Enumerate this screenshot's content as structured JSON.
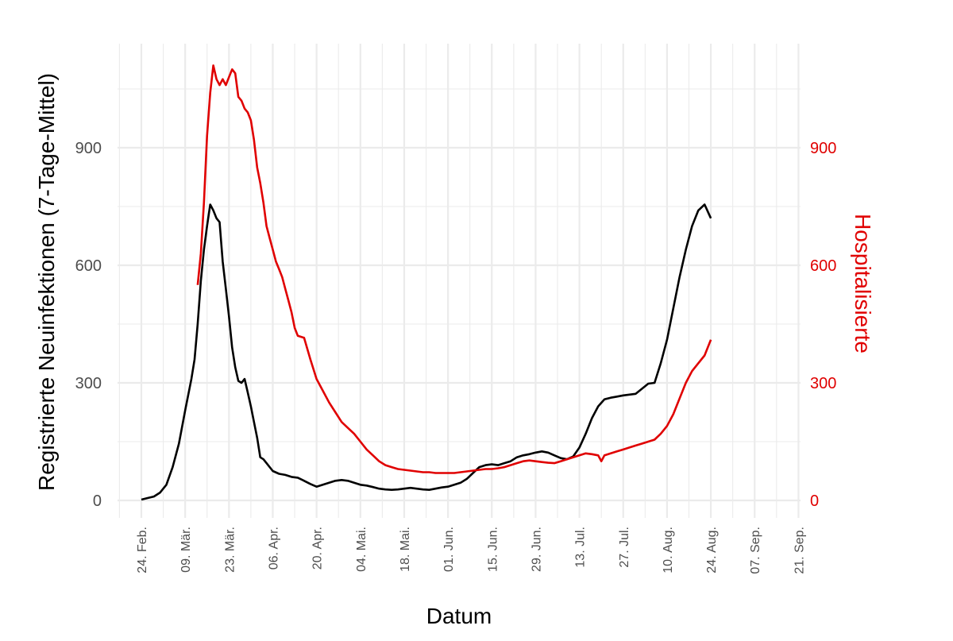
{
  "chart_data": {
    "type": "line",
    "xlabel": "Datum",
    "ylabel_left": "Registrierte Neuinfektionen (7-Tage-Mittel)",
    "ylabel_right": "Hospitalisierte",
    "x_tick_labels": [
      "24. Feb.",
      "09. Mär.",
      "23. Mär.",
      "06. Apr.",
      "20. Apr.",
      "04. Mai.",
      "18. Mai.",
      "01. Jun.",
      "15. Jun.",
      "29. Jun.",
      "13. Jul.",
      "27. Jul.",
      "10. Aug.",
      "24. Aug.",
      "07. Sep.",
      "21. Sep."
    ],
    "y_ticks_left": [
      "0",
      "300",
      "600",
      "900"
    ],
    "y_ticks_right": [
      "0",
      "300",
      "600",
      "900"
    ],
    "ylim": [
      -45,
      1160
    ],
    "grid": true,
    "colors": {
      "infections": "#000000",
      "hospitalized": "#e00000",
      "grid": "#ebebeb",
      "tick_text": "#4d4d4d"
    },
    "series": [
      {
        "key": "infections",
        "axis": "left",
        "points": [
          [
            0,
            2
          ],
          [
            2,
            6
          ],
          [
            4,
            10
          ],
          [
            6,
            20
          ],
          [
            8,
            40
          ],
          [
            10,
            85
          ],
          [
            12,
            145
          ],
          [
            14,
            230
          ],
          [
            16,
            310
          ],
          [
            17,
            360
          ],
          [
            18,
            450
          ],
          [
            19,
            560
          ],
          [
            20,
            640
          ],
          [
            21,
            700
          ],
          [
            22,
            755
          ],
          [
            23,
            740
          ],
          [
            24,
            720
          ],
          [
            25,
            710
          ],
          [
            26,
            610
          ],
          [
            27,
            540
          ],
          [
            28,
            470
          ],
          [
            29,
            390
          ],
          [
            30,
            340
          ],
          [
            31,
            305
          ],
          [
            32,
            300
          ],
          [
            33,
            310
          ],
          [
            34,
            275
          ],
          [
            35,
            240
          ],
          [
            36,
            200
          ],
          [
            37,
            160
          ],
          [
            38,
            110
          ],
          [
            39,
            105
          ],
          [
            40,
            95
          ],
          [
            42,
            75
          ],
          [
            44,
            68
          ],
          [
            46,
            65
          ],
          [
            48,
            60
          ],
          [
            50,
            58
          ],
          [
            52,
            50
          ],
          [
            54,
            42
          ],
          [
            56,
            35
          ],
          [
            58,
            40
          ],
          [
            60,
            45
          ],
          [
            62,
            50
          ],
          [
            64,
            52
          ],
          [
            66,
            50
          ],
          [
            68,
            45
          ],
          [
            70,
            40
          ],
          [
            72,
            38
          ],
          [
            74,
            34
          ],
          [
            76,
            30
          ],
          [
            78,
            28
          ],
          [
            80,
            27
          ],
          [
            82,
            28
          ],
          [
            84,
            30
          ],
          [
            86,
            32
          ],
          [
            88,
            30
          ],
          [
            90,
            28
          ],
          [
            92,
            27
          ],
          [
            94,
            30
          ],
          [
            96,
            33
          ],
          [
            98,
            35
          ],
          [
            100,
            40
          ],
          [
            102,
            45
          ],
          [
            104,
            55
          ],
          [
            106,
            70
          ],
          [
            108,
            85
          ],
          [
            110,
            90
          ],
          [
            112,
            92
          ],
          [
            114,
            90
          ],
          [
            116,
            95
          ],
          [
            118,
            100
          ],
          [
            120,
            110
          ],
          [
            122,
            115
          ],
          [
            124,
            118
          ],
          [
            126,
            122
          ],
          [
            128,
            125
          ],
          [
            130,
            122
          ],
          [
            132,
            115
          ],
          [
            134,
            108
          ],
          [
            136,
            105
          ],
          [
            138,
            112
          ],
          [
            140,
            135
          ],
          [
            142,
            170
          ],
          [
            144,
            210
          ],
          [
            146,
            240
          ],
          [
            148,
            258
          ],
          [
            150,
            262
          ],
          [
            152,
            265
          ],
          [
            154,
            268
          ],
          [
            156,
            270
          ],
          [
            158,
            272
          ],
          [
            160,
            285
          ],
          [
            162,
            298
          ],
          [
            164,
            300
          ],
          [
            166,
            350
          ],
          [
            168,
            410
          ],
          [
            170,
            490
          ],
          [
            172,
            570
          ],
          [
            174,
            640
          ],
          [
            176,
            700
          ],
          [
            178,
            740
          ],
          [
            180,
            755
          ],
          [
            182,
            720
          ]
        ]
      },
      {
        "key": "hospitalized",
        "axis": "right",
        "points": [
          [
            18,
            550
          ],
          [
            19,
            630
          ],
          [
            20,
            760
          ],
          [
            21,
            930
          ],
          [
            22,
            1040
          ],
          [
            23,
            1110
          ],
          [
            24,
            1075
          ],
          [
            25,
            1060
          ],
          [
            26,
            1075
          ],
          [
            27,
            1060
          ],
          [
            28,
            1080
          ],
          [
            29,
            1100
          ],
          [
            30,
            1090
          ],
          [
            31,
            1030
          ],
          [
            32,
            1020
          ],
          [
            33,
            1000
          ],
          [
            34,
            990
          ],
          [
            35,
            970
          ],
          [
            36,
            920
          ],
          [
            37,
            850
          ],
          [
            38,
            810
          ],
          [
            39,
            760
          ],
          [
            40,
            700
          ],
          [
            41,
            670
          ],
          [
            42,
            640
          ],
          [
            43,
            610
          ],
          [
            44,
            590
          ],
          [
            45,
            570
          ],
          [
            46,
            540
          ],
          [
            47,
            510
          ],
          [
            48,
            480
          ],
          [
            49,
            440
          ],
          [
            50,
            420
          ],
          [
            52,
            415
          ],
          [
            54,
            360
          ],
          [
            56,
            310
          ],
          [
            58,
            280
          ],
          [
            60,
            250
          ],
          [
            62,
            225
          ],
          [
            64,
            200
          ],
          [
            66,
            185
          ],
          [
            68,
            170
          ],
          [
            70,
            150
          ],
          [
            72,
            130
          ],
          [
            74,
            115
          ],
          [
            76,
            100
          ],
          [
            78,
            90
          ],
          [
            80,
            85
          ],
          [
            82,
            80
          ],
          [
            84,
            78
          ],
          [
            86,
            76
          ],
          [
            88,
            74
          ],
          [
            90,
            72
          ],
          [
            92,
            72
          ],
          [
            94,
            70
          ],
          [
            96,
            70
          ],
          [
            98,
            70
          ],
          [
            100,
            70
          ],
          [
            102,
            72
          ],
          [
            104,
            74
          ],
          [
            106,
            76
          ],
          [
            108,
            78
          ],
          [
            110,
            80
          ],
          [
            112,
            80
          ],
          [
            114,
            82
          ],
          [
            116,
            85
          ],
          [
            118,
            90
          ],
          [
            120,
            95
          ],
          [
            122,
            100
          ],
          [
            124,
            102
          ],
          [
            126,
            100
          ],
          [
            128,
            98
          ],
          [
            130,
            96
          ],
          [
            132,
            95
          ],
          [
            134,
            100
          ],
          [
            136,
            105
          ],
          [
            138,
            110
          ],
          [
            140,
            115
          ],
          [
            142,
            120
          ],
          [
            144,
            118
          ],
          [
            146,
            115
          ],
          [
            147,
            100
          ],
          [
            148,
            115
          ],
          [
            150,
            120
          ],
          [
            152,
            125
          ],
          [
            154,
            130
          ],
          [
            156,
            135
          ],
          [
            158,
            140
          ],
          [
            160,
            145
          ],
          [
            162,
            150
          ],
          [
            164,
            155
          ],
          [
            166,
            170
          ],
          [
            168,
            190
          ],
          [
            170,
            220
          ],
          [
            172,
            260
          ],
          [
            174,
            300
          ],
          [
            176,
            330
          ],
          [
            178,
            350
          ],
          [
            180,
            370
          ],
          [
            182,
            410
          ]
        ]
      }
    ]
  }
}
